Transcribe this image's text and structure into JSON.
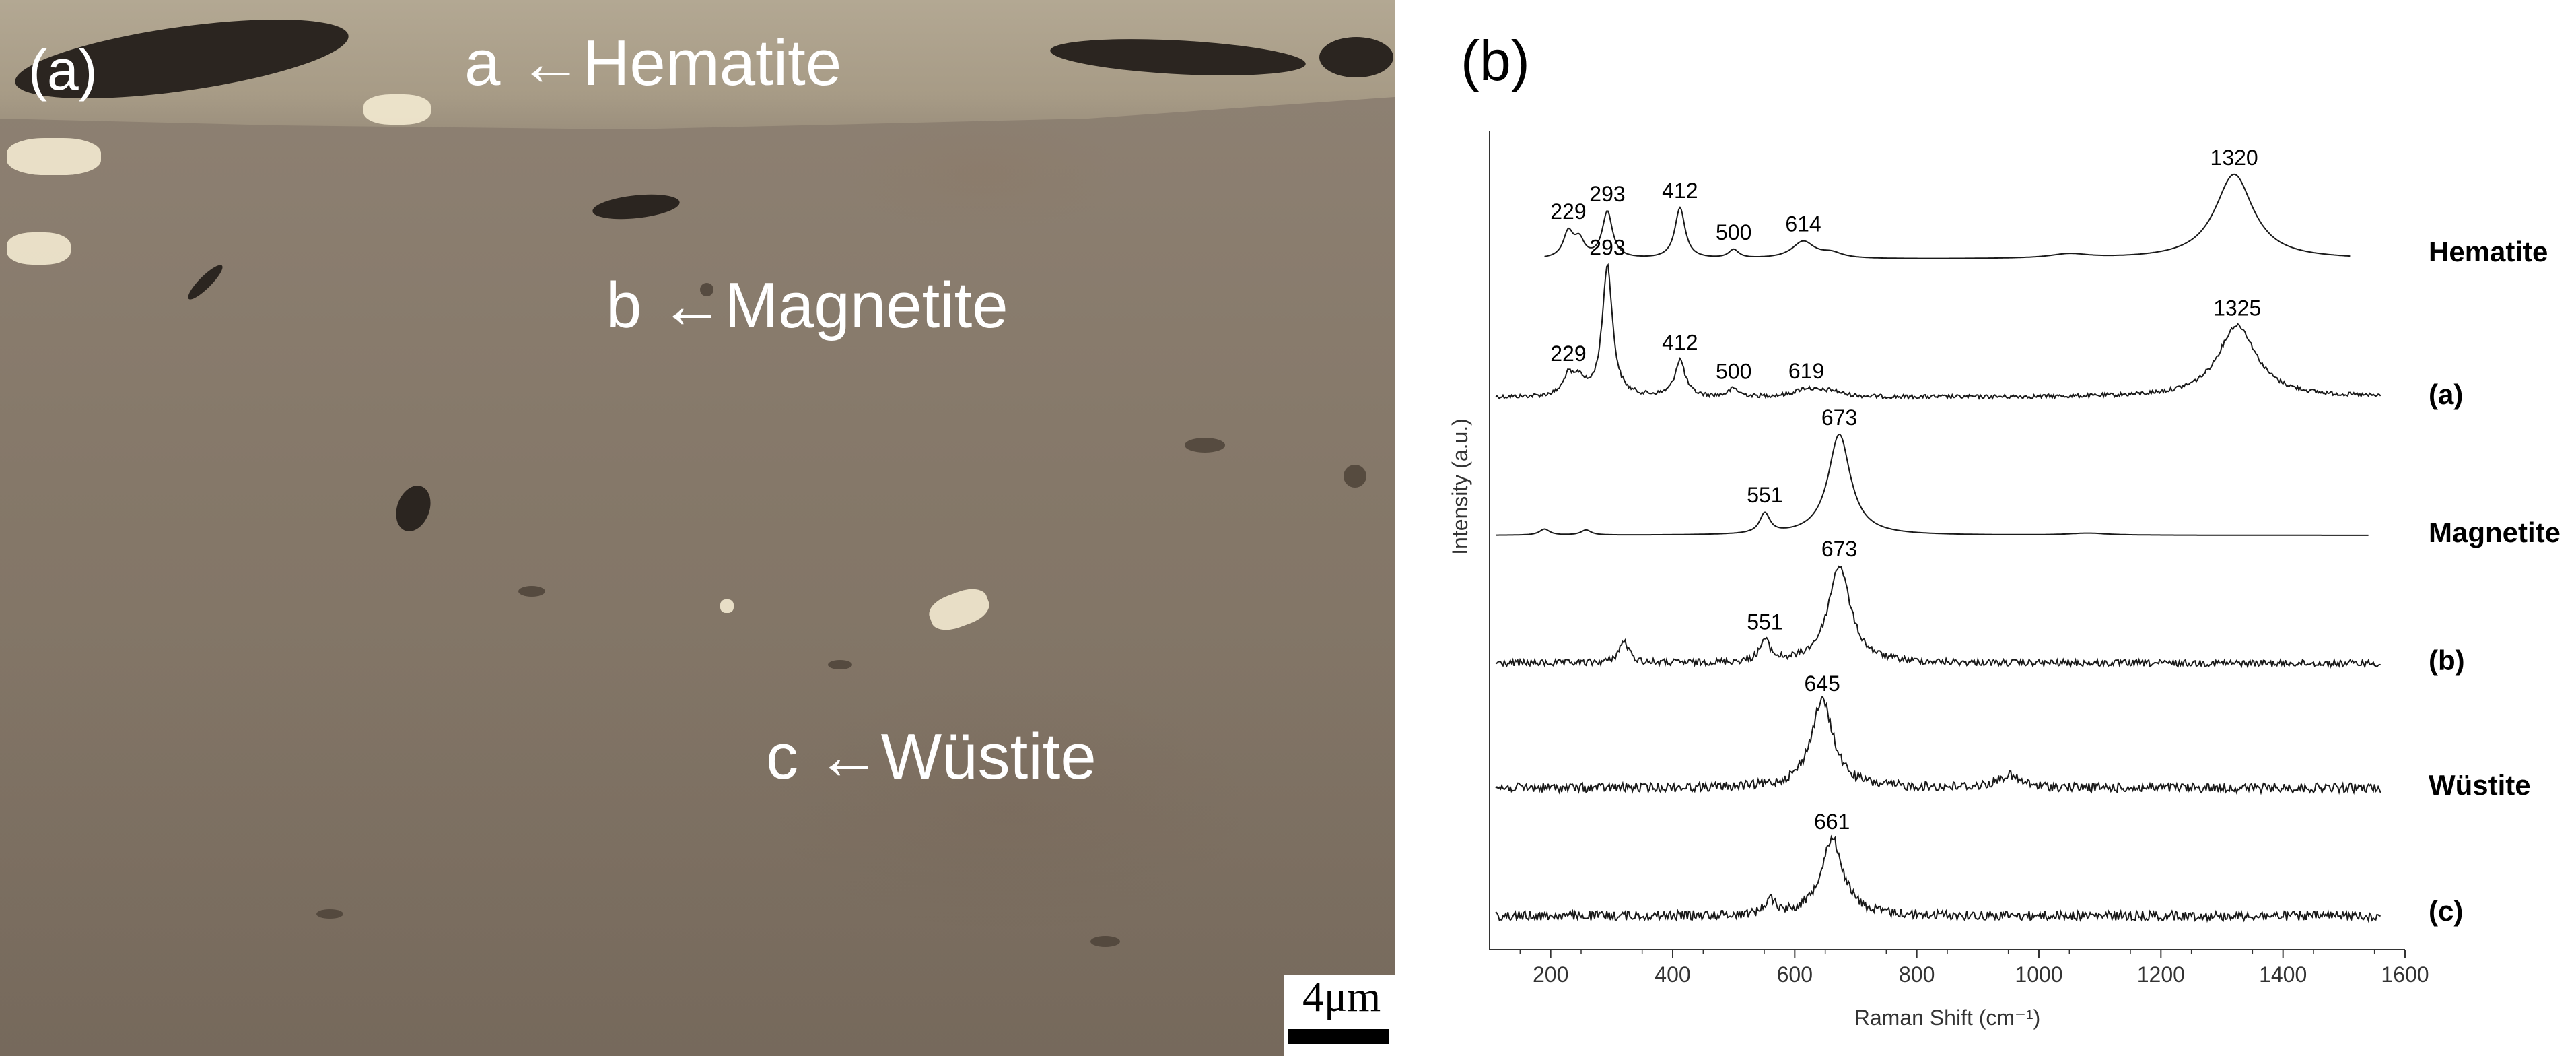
{
  "panel_a": {
    "tag": "(a)",
    "labels": {
      "hematite": "a ←Hematite",
      "magnetite": "b ←Magnetite",
      "wustite": "c ←Wüstite"
    },
    "scale_bar": "4μm"
  },
  "panel_b": {
    "tag": "(b)"
  },
  "chart_data": {
    "type": "line",
    "title": "",
    "xlabel": "Raman Shift (cm⁻¹)",
    "ylabel": "Intensity (a.u.)",
    "xlim": [
      100,
      1600
    ],
    "xticks": [
      200,
      400,
      600,
      800,
      1000,
      1200,
      1400,
      1600
    ],
    "grid": false,
    "legend": "none",
    "series": [
      {
        "name": "Hematite",
        "x_range": [
          190,
          1510
        ],
        "peaks": [
          {
            "x": 229,
            "label": "229",
            "h": 0.3
          },
          {
            "x": 247,
            "h": 0.2
          },
          {
            "x": 293,
            "label": "293",
            "h": 0.55
          },
          {
            "x": 412,
            "label": "412",
            "h": 0.6
          },
          {
            "x": 500,
            "label": "500",
            "h": 0.1
          },
          {
            "x": 614,
            "label": "614",
            "h": 0.2
          },
          {
            "x": 660,
            "h": 0.06
          },
          {
            "x": 1050,
            "h": 0.05
          },
          {
            "x": 1320,
            "label": "1320",
            "h": 1.0
          }
        ],
        "noise": false
      },
      {
        "name": "(a)",
        "x_range": [
          110,
          1560
        ],
        "peaks": [
          {
            "x": 229,
            "label": "229",
            "h": 0.15
          },
          {
            "x": 247,
            "h": 0.12
          },
          {
            "x": 293,
            "label": "293",
            "h": 1.0
          },
          {
            "x": 412,
            "label": "412",
            "h": 0.28
          },
          {
            "x": 500,
            "label": "500",
            "h": 0.06
          },
          {
            "x": 619,
            "label": "619",
            "h": 0.06
          },
          {
            "x": 660,
            "h": 0.04
          },
          {
            "x": 1325,
            "label": "1325",
            "h": 0.55
          }
        ],
        "noise": true
      },
      {
        "name": "Magnetite",
        "x_range": [
          110,
          1540
        ],
        "peaks": [
          {
            "x": 190,
            "h": 0.06
          },
          {
            "x": 258,
            "h": 0.05
          },
          {
            "x": 551,
            "label": "551",
            "h": 0.2
          },
          {
            "x": 673,
            "label": "673",
            "h": 1.0
          },
          {
            "x": 1080,
            "h": 0.02
          }
        ],
        "noise": false
      },
      {
        "name": "(b)",
        "x_range": [
          110,
          1560
        ],
        "peaks": [
          {
            "x": 320,
            "h": 0.22
          },
          {
            "x": 551,
            "label": "551",
            "h": 0.22
          },
          {
            "x": 673,
            "label": "673",
            "h": 1.0
          }
        ],
        "noise": true
      },
      {
        "name": "Wüstite",
        "x_range": [
          110,
          1560
        ],
        "peaks": [
          {
            "x": 645,
            "label": "645",
            "h": 1.0
          },
          {
            "x": 950,
            "h": 0.14
          }
        ],
        "noise": true
      },
      {
        "name": "(c)",
        "x_range": [
          110,
          1560
        ],
        "peaks": [
          {
            "x": 560,
            "h": 0.2
          },
          {
            "x": 661,
            "label": "661",
            "h": 1.0
          }
        ],
        "noise": true
      }
    ]
  }
}
